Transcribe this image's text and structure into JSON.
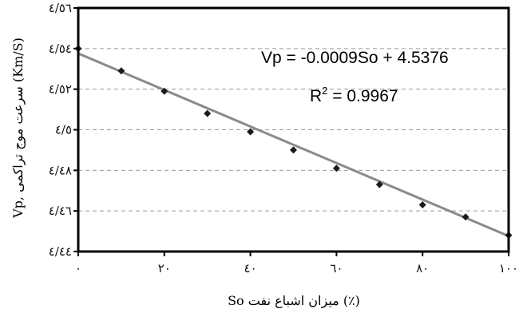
{
  "chart_data": {
    "type": "scatter",
    "x": [
      0,
      10,
      20,
      30,
      40,
      50,
      60,
      70,
      80,
      90,
      100
    ],
    "y": [
      4.54,
      4.529,
      4.519,
      4.508,
      4.499,
      4.49,
      4.481,
      4.473,
      4.463,
      4.457,
      4.448
    ],
    "xlim": [
      0,
      100
    ],
    "ylim": [
      4.44,
      4.56
    ],
    "x_ticks": [
      0,
      20,
      40,
      60,
      80,
      100
    ],
    "x_tick_labels": [
      "۰",
      "۲۰",
      "٤۰",
      "٦۰",
      "۸۰",
      "۱۰۰"
    ],
    "y_ticks": [
      4.44,
      4.46,
      4.48,
      4.5,
      4.52,
      4.54,
      4.56
    ],
    "y_tick_labels": [
      "٤/٤٤",
      "٤/٤٦",
      "٤/٤٨",
      "٤/٥",
      "٤/٥٢",
      "٤/٥٤",
      "٤/٥٦"
    ],
    "trendline": {
      "slope": -0.0009,
      "intercept": 4.5376
    },
    "equation": "Vp = -0.0009So + 4.5376",
    "r2_label": "R",
    "r2_sup": "2",
    "r2_value": " = 0.9967",
    "xlabel": "(٪) میزان اشباع نفت So",
    "ylabel": "(Km/S) سرعت موج تراکمی ,Vp",
    "grid": "horizontal-dashed",
    "colors": {
      "marker": "#1a1a1a",
      "trendline": "#8a8a8a",
      "grid": "#9a9a9a",
      "axis": "#000000"
    }
  }
}
